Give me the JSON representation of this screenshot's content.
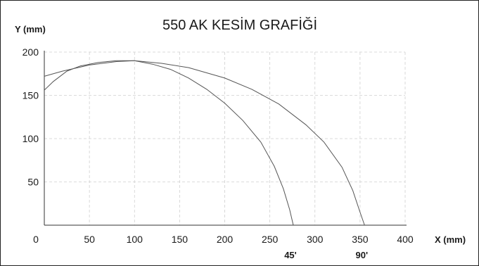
{
  "chart_data": {
    "type": "line",
    "title": "550 AK KESİM GRAFİĞİ",
    "xlabel": "X (mm)",
    "ylabel": "Y (mm)",
    "xlim": [
      0,
      400
    ],
    "ylim": [
      0,
      200
    ],
    "xticks": [
      0,
      50,
      100,
      150,
      200,
      250,
      300,
      350,
      400
    ],
    "yticks": [
      50,
      100,
      150,
      200
    ],
    "grid": true,
    "series": [
      {
        "name": "45'",
        "points": [
          [
            0,
            156
          ],
          [
            10,
            166
          ],
          [
            25,
            178
          ],
          [
            40,
            184
          ],
          [
            60,
            188
          ],
          [
            80,
            190
          ],
          [
            100,
            190
          ],
          [
            120,
            186
          ],
          [
            140,
            180
          ],
          [
            160,
            170
          ],
          [
            180,
            157
          ],
          [
            200,
            141
          ],
          [
            220,
            121
          ],
          [
            240,
            96
          ],
          [
            255,
            68
          ],
          [
            265,
            42
          ],
          [
            272,
            18
          ],
          [
            276,
            0
          ]
        ]
      },
      {
        "name": "90'",
        "points": [
          [
            0,
            172
          ],
          [
            20,
            178
          ],
          [
            50,
            185
          ],
          [
            80,
            189
          ],
          [
            100,
            190
          ],
          [
            130,
            187
          ],
          [
            160,
            182
          ],
          [
            200,
            170
          ],
          [
            230,
            157
          ],
          [
            260,
            140
          ],
          [
            290,
            116
          ],
          [
            310,
            96
          ],
          [
            330,
            67
          ],
          [
            342,
            40
          ],
          [
            350,
            15
          ],
          [
            355,
            0
          ]
        ]
      }
    ]
  }
}
